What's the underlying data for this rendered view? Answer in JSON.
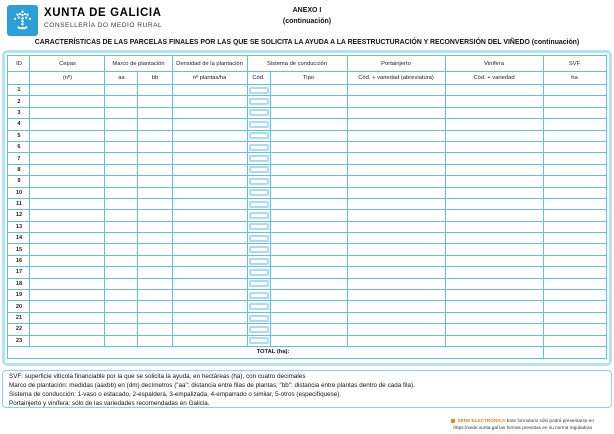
{
  "header": {
    "org_name": "XUNTA DE GALICIA",
    "org_dept": "CONSELLERÍA DO MEDIO RURAL",
    "annex_line1": "ANEXO I",
    "annex_line2": "(continuación)",
    "form_title": "CARACTERÍSTICAS DE LAS PARCELAS FINALES POR LAS QUE SE SOLICITA LA AYUDA A LA REESTRUCTURACIÓN Y RECONVERSIÓN DEL VIÑEDO (continuación)"
  },
  "table": {
    "group_headers": [
      {
        "label": "ID",
        "span": 1
      },
      {
        "label": "Cepas",
        "span": 1
      },
      {
        "label": "Marco de plantación",
        "span": 2
      },
      {
        "label": "Densidad de la plantación",
        "span": 1
      },
      {
        "label": "Sistema de conducción",
        "span": 2
      },
      {
        "label": "Portainjerto",
        "span": 1
      },
      {
        "label": "Vinífera",
        "span": 1
      },
      {
        "label": "SVF",
        "span": 1
      }
    ],
    "sub_headers": [
      "",
      "(nº)",
      "aa",
      "bb",
      "nº plantas/ha",
      "Cód.",
      "Tipo",
      "Cód. + variedad (abreviatura)",
      "Cód. + variedad",
      "ha"
    ],
    "row_ids": [
      "1",
      "2",
      "3",
      "4",
      "5",
      "6",
      "7",
      "8",
      "9",
      "10",
      "11",
      "12",
      "13",
      "14",
      "15",
      "16",
      "17",
      "18",
      "19",
      "20",
      "21",
      "22",
      "23"
    ],
    "total_label": "TOTAL (ha):",
    "total_value": ""
  },
  "footnotes": [
    "SVF: superficie vitícola financiable por la que se solicita la ayuda, en hectáreas (ha), con cuatro decimales",
    "Marco de plantación: medidas (aaxbb) en (dm) decímetros (\"aa\": distancia entre filas de plantas; \"bb\": distancia entre plantas dentro de cada fila).",
    "Sistema de conducción: 1-vaso o estacado, 2-espaldera, 3-empalizada, 4-emparrado o similar, 5-otros (especifíquese).",
    "Portainjerto y vinífera: sólo de las variedades recomendadas en Galicia."
  ],
  "footer": {
    "sede_label": "SEDE ELECTRÓNICA",
    "line1_text": "Este formulario sólo podrá presentarse en",
    "url": "https://sede.xunta.gal",
    "line2_text": "las formas previstas en su norma reguladora"
  },
  "colors": {
    "logo_blue": "#2b9fd8",
    "grid_blue": "#2fa6e0",
    "light_border_blue": "#b5e1f7",
    "accent_orange": "#ee7d11"
  }
}
